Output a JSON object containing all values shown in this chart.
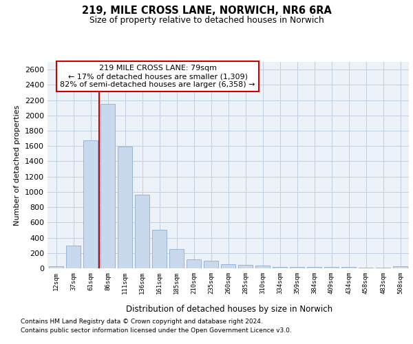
{
  "title1": "219, MILE CROSS LANE, NORWICH, NR6 6RA",
  "title2": "Size of property relative to detached houses in Norwich",
  "xlabel": "Distribution of detached houses by size in Norwich",
  "ylabel": "Number of detached properties",
  "bar_color": "#c8d8ed",
  "bar_edge_color": "#8aaed4",
  "grid_color": "#c0cfe0",
  "background_color": "#edf2f9",
  "vline_color": "#cc0000",
  "vline_x": 3,
  "annotation_text": "219 MILE CROSS LANE: 79sqm\n← 17% of detached houses are smaller (1,309)\n82% of semi-detached houses are larger (6,358) →",
  "annotation_edge_color": "#cc0000",
  "categories": [
    "12sqm",
    "37sqm",
    "61sqm",
    "86sqm",
    "111sqm",
    "136sqm",
    "161sqm",
    "185sqm",
    "210sqm",
    "235sqm",
    "260sqm",
    "285sqm",
    "310sqm",
    "334sqm",
    "359sqm",
    "384sqm",
    "409sqm",
    "434sqm",
    "458sqm",
    "483sqm",
    "508sqm"
  ],
  "values": [
    25,
    300,
    1670,
    2150,
    1590,
    960,
    500,
    250,
    120,
    100,
    50,
    42,
    35,
    22,
    22,
    22,
    16,
    22,
    5,
    5,
    28
  ],
  "ylim": [
    0,
    2700
  ],
  "yticks": [
    0,
    200,
    400,
    600,
    800,
    1000,
    1200,
    1400,
    1600,
    1800,
    2000,
    2200,
    2400,
    2600
  ],
  "footer1": "Contains HM Land Registry data © Crown copyright and database right 2024.",
  "footer2": "Contains public sector information licensed under the Open Government Licence v3.0."
}
